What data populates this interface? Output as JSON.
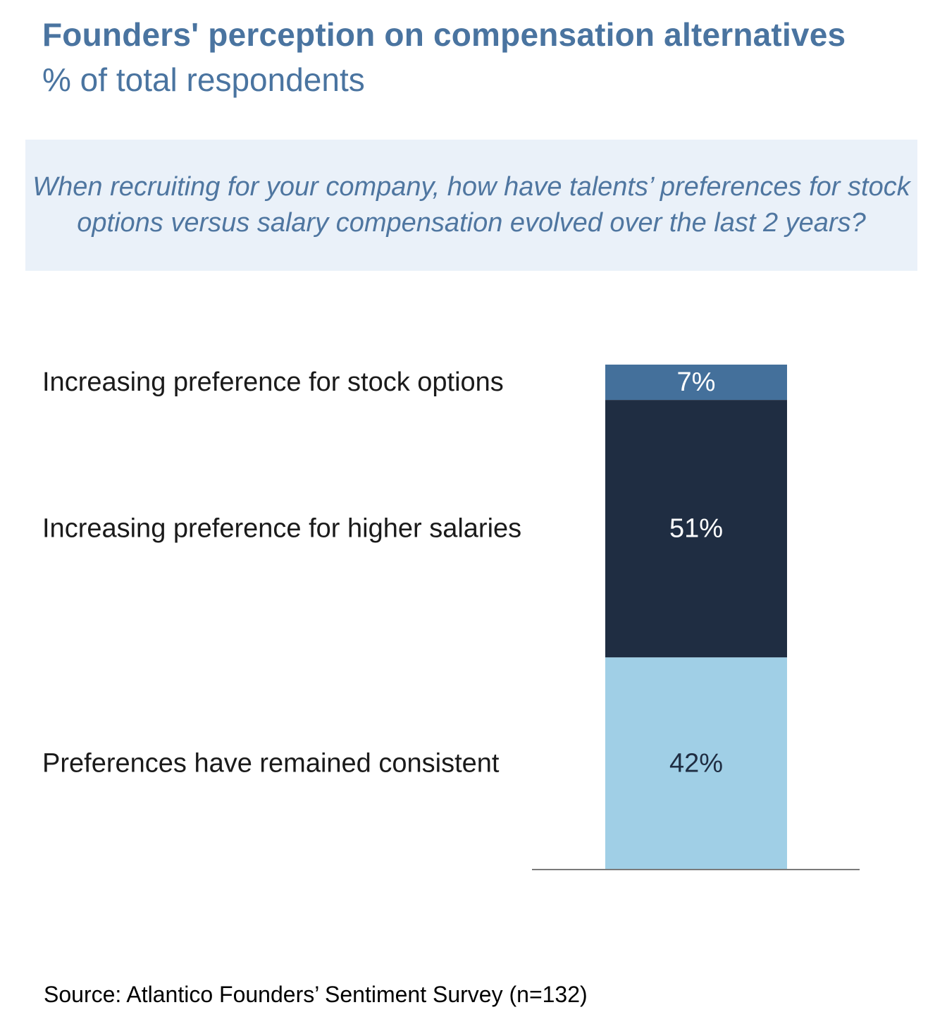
{
  "header": {
    "title": "Founders' perception on compensation alternatives",
    "subtitle": "% of total respondents"
  },
  "question": {
    "text": "When recruiting for your company, how have talents’ preferences for stock options versus salary compensation evolved over the last 2 years?"
  },
  "footer": {
    "source": "Source: Atlantico Founders’ Sentiment Survey (n=132)"
  },
  "colors": {
    "title": "#4a74a0",
    "question_bg": "#eaf1f9",
    "stock_options": "#44709b",
    "higher_salaries": "#1f2d42",
    "consistent": "#a0cfe6"
  },
  "chart_data": {
    "type": "bar",
    "stacked": true,
    "orientation": "vertical",
    "unit": "%",
    "title": "Founders' perception on compensation alternatives",
    "subtitle": "% of total respondents",
    "xlabel": "",
    "ylabel": "",
    "ylim": [
      0,
      100
    ],
    "grid": false,
    "legend": "left",
    "series": [
      {
        "name": "Increasing preference for stock options",
        "value": 7,
        "label": "7%",
        "color": "#44709b"
      },
      {
        "name": "Increasing preference for higher salaries",
        "value": 51,
        "label": "51%",
        "color": "#1f2d42"
      },
      {
        "name": "Preferences have remained consistent",
        "value": 42,
        "label": "42%",
        "color": "#a0cfe6"
      }
    ]
  }
}
